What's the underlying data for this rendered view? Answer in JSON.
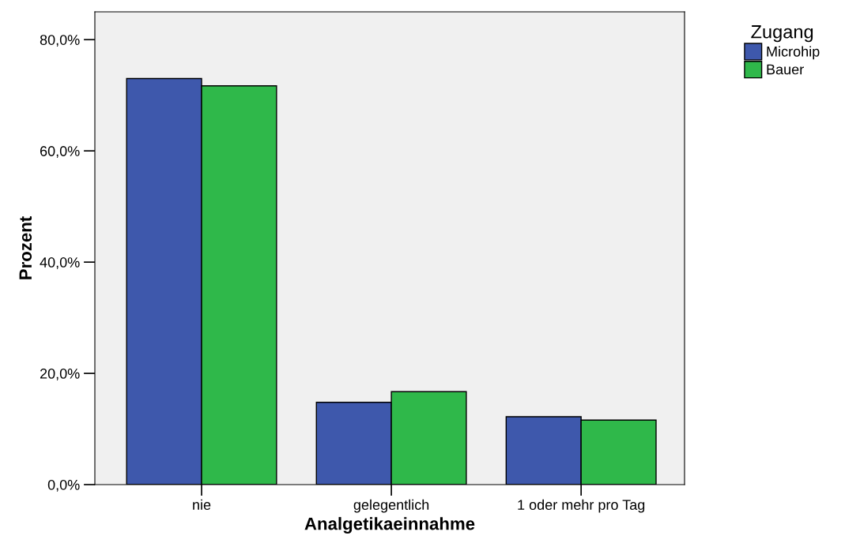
{
  "chart_data": {
    "type": "bar",
    "xlabel": "Analgetikaeinnahme",
    "ylabel": "Prozent",
    "legend_title": "Zugang",
    "categories": [
      "nie",
      "gelegentlich",
      "1 oder mehr pro Tag"
    ],
    "series": [
      {
        "name": "Microhip",
        "color": "#3e58ac",
        "values": [
          73.0,
          14.8,
          12.2
        ]
      },
      {
        "name": "Bauer",
        "color": "#2fb84a",
        "values": [
          71.7,
          16.7,
          11.6
        ]
      }
    ],
    "ylim": [
      0,
      85
    ],
    "yticks": [
      {
        "value": 0,
        "label": "0,0%"
      },
      {
        "value": 20,
        "label": "20,0%"
      },
      {
        "value": 40,
        "label": "40,0%"
      },
      {
        "value": 60,
        "label": "60,0%"
      },
      {
        "value": 80,
        "label": "80,0%"
      }
    ],
    "grid": false,
    "legend": "top right"
  }
}
